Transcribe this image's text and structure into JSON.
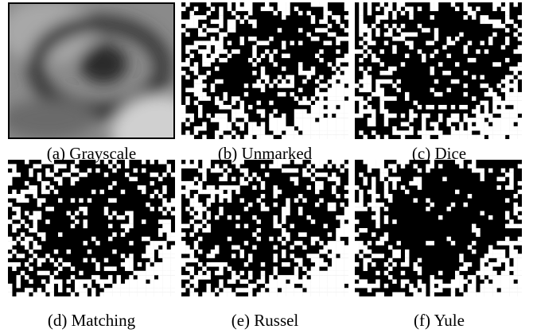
{
  "figure": {
    "panels": [
      {
        "caption": "(a) Grayscale"
      },
      {
        "caption": "(b) Unmarked"
      },
      {
        "caption": "(c) Dice"
      },
      {
        "caption": "(d) Matching"
      },
      {
        "caption": "(e) Russel"
      },
      {
        "caption": "(f) Yule"
      }
    ]
  }
}
